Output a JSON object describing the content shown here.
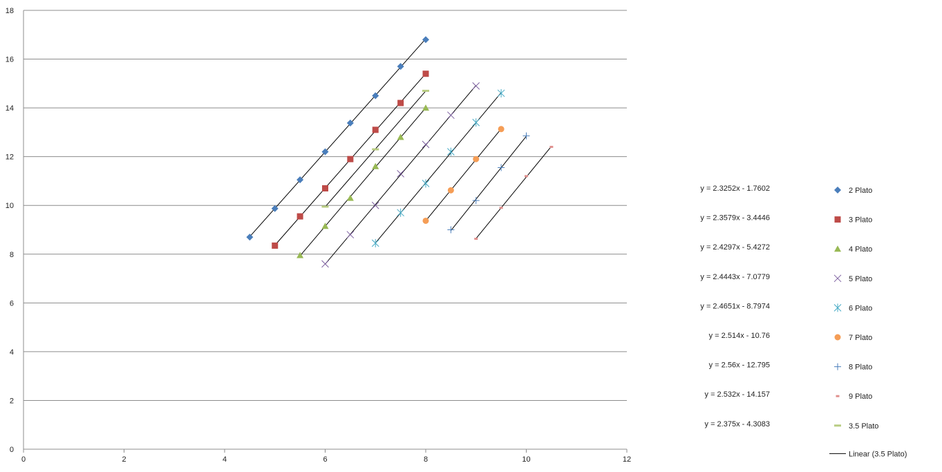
{
  "chart_data": {
    "type": "scatter",
    "title": "",
    "xlabel": "",
    "ylabel": "",
    "xlim": [
      0,
      12
    ],
    "ylim": [
      0,
      18
    ],
    "x_ticks": [
      0,
      2,
      4,
      6,
      8,
      10,
      12
    ],
    "y_ticks": [
      0,
      2,
      4,
      6,
      8,
      10,
      12,
      14,
      16,
      18
    ],
    "grid": "horizontal",
    "legend_position": "right",
    "series": [
      {
        "name": "2 Plato",
        "marker": "diamond",
        "color": "#4a7ebb",
        "equation": "y = 2.3252x - 1.7602",
        "x": [
          4.5,
          5.0,
          5.5,
          6.0,
          6.5,
          7.0,
          7.5,
          8.0
        ],
        "y": [
          8.7,
          9.87,
          11.05,
          12.2,
          13.38,
          14.5,
          15.7,
          16.8
        ]
      },
      {
        "name": "3 Plato",
        "marker": "square",
        "color": "#be4b48",
        "equation": "y = 2.3579x - 3.4446",
        "x": [
          5.0,
          5.5,
          6.0,
          6.5,
          7.0,
          7.5,
          8.0
        ],
        "y": [
          8.35,
          9.55,
          10.7,
          11.9,
          13.1,
          14.2,
          15.4
        ]
      },
      {
        "name": "4 Plato",
        "marker": "triangle",
        "color": "#98b954",
        "equation": "y = 2.4297x - 5.4272",
        "x": [
          5.5,
          6.0,
          6.5,
          7.0,
          7.5,
          8.0
        ],
        "y": [
          7.95,
          9.15,
          10.3,
          11.6,
          12.8,
          14.0
        ]
      },
      {
        "name": "5 Plato",
        "marker": "x",
        "color": "#7d5fa0",
        "equation": "y = 2.4443x - 7.0779",
        "x": [
          6.0,
          6.5,
          7.0,
          7.5,
          8.0,
          8.5,
          9.0
        ],
        "y": [
          7.6,
          8.8,
          10.0,
          11.3,
          12.5,
          13.7,
          14.9
        ]
      },
      {
        "name": "6 Plato",
        "marker": "star",
        "color": "#46aac5",
        "equation": "y = 2.4651x - 8.7974",
        "x": [
          7.0,
          7.5,
          8.0,
          8.5,
          9.0,
          9.5
        ],
        "y": [
          8.45,
          9.7,
          10.9,
          12.2,
          13.4,
          14.6
        ]
      },
      {
        "name": "7 Plato",
        "marker": "circle",
        "color": "#f59d56",
        "equation": "y = 2.514x - 10.76",
        "x": [
          8.0,
          8.5,
          9.0,
          9.5
        ],
        "y": [
          9.37,
          10.62,
          11.9,
          13.13
        ]
      },
      {
        "name": "8 Plato",
        "marker": "plus",
        "color": "#4a7ebb",
        "equation": "y = 2.56x - 12.795",
        "x": [
          8.5,
          9.0,
          9.5,
          10.0
        ],
        "y": [
          9.0,
          10.2,
          11.55,
          12.85
        ]
      },
      {
        "name": "9 Plato",
        "marker": "dash",
        "color": "#e0908e",
        "equation": "y = 2.532x - 14.157",
        "x": [
          9.0,
          9.5,
          10.0,
          10.5
        ],
        "y": [
          8.63,
          9.9,
          11.2,
          12.4
        ]
      },
      {
        "name": "3.5 Plato",
        "marker": "bar",
        "color": "#b8cc82",
        "equation": "y = 2.375x - 4.3083",
        "x": [
          6.0,
          7.0,
          8.0
        ],
        "y": [
          9.95,
          12.3,
          14.7
        ]
      }
    ],
    "trendline_legend": "Linear (3.5 Plato)"
  }
}
